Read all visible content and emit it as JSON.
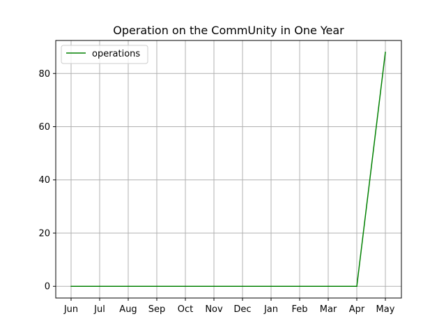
{
  "chart_data": {
    "type": "line",
    "title": "Operation on the CommUnity in One Year",
    "xlabel": "",
    "ylabel": "",
    "categories": [
      "Jun",
      "Jul",
      "Aug",
      "Sep",
      "Oct",
      "Nov",
      "Dec",
      "Jan",
      "Feb",
      "Mar",
      "Apr",
      "May"
    ],
    "series": [
      {
        "name": "operations",
        "color": "#008000",
        "values": [
          0,
          0,
          0,
          0,
          0,
          0,
          0,
          0,
          0,
          0,
          0,
          88
        ]
      }
    ],
    "ylim": [
      -4.4,
      92.4
    ],
    "yticks": [
      0,
      20,
      40,
      60,
      80
    ],
    "grid": true,
    "legend_position": "upper-left"
  }
}
